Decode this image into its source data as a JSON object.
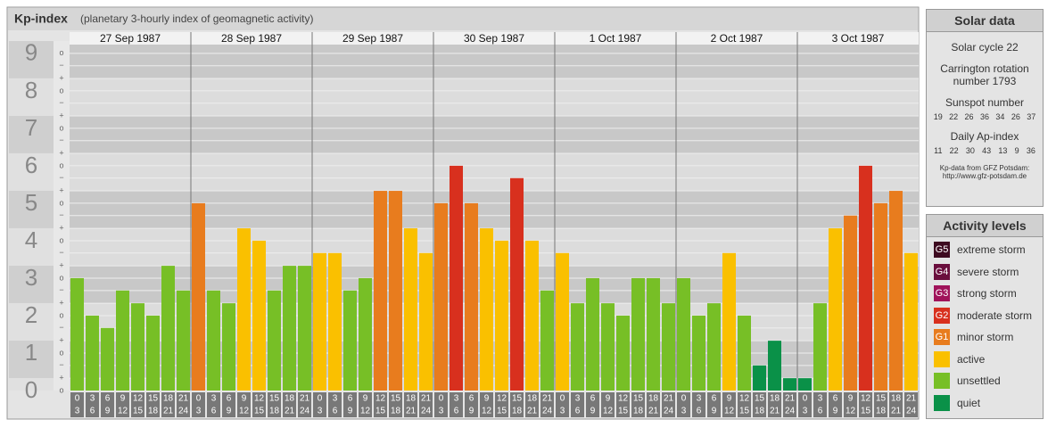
{
  "chart_data": {
    "type": "bar",
    "title": "Kp-index",
    "subtitle": "(planetary 3-hourly index of geomagnetic activity)",
    "ylim": [
      0,
      9.33
    ],
    "major_ticks": [
      0,
      1,
      2,
      3,
      4,
      5,
      6,
      7,
      8,
      9
    ],
    "yticks": [
      {
        "value": 0,
        "label": "o"
      },
      {
        "value": 0.33,
        "label": "+"
      },
      {
        "value": 0.67,
        "label": "−"
      },
      {
        "value": 1,
        "label": "o"
      },
      {
        "value": 1.33,
        "label": "+"
      },
      {
        "value": 1.67,
        "label": "−"
      },
      {
        "value": 2,
        "label": "o"
      },
      {
        "value": 2.33,
        "label": "+"
      },
      {
        "value": 2.67,
        "label": "−"
      },
      {
        "value": 3,
        "label": "o"
      },
      {
        "value": 3.33,
        "label": "+"
      },
      {
        "value": 3.67,
        "label": "−"
      },
      {
        "value": 4,
        "label": "o"
      },
      {
        "value": 4.33,
        "label": "+"
      },
      {
        "value": 4.67,
        "label": "−"
      },
      {
        "value": 5,
        "label": "o"
      },
      {
        "value": 5.33,
        "label": "+"
      },
      {
        "value": 5.67,
        "label": "−"
      },
      {
        "value": 6,
        "label": "o"
      },
      {
        "value": 6.33,
        "label": "+"
      },
      {
        "value": 6.67,
        "label": "−"
      },
      {
        "value": 7,
        "label": "o"
      },
      {
        "value": 7.33,
        "label": "+"
      },
      {
        "value": 7.67,
        "label": "−"
      },
      {
        "value": 8,
        "label": "o"
      },
      {
        "value": 8.33,
        "label": "+"
      },
      {
        "value": 8.67,
        "label": "−"
      },
      {
        "value": 9,
        "label": "o"
      }
    ],
    "grid": true,
    "hour_labels": [
      [
        "0",
        "3"
      ],
      [
        "3",
        "6"
      ],
      [
        "6",
        "9"
      ],
      [
        "9",
        "12"
      ],
      [
        "12",
        "15"
      ],
      [
        "15",
        "18"
      ],
      [
        "18",
        "21"
      ],
      [
        "21",
        "24"
      ]
    ],
    "days": [
      {
        "date": "27 Sep 1987",
        "values": [
          3,
          2,
          1.67,
          2.67,
          2.33,
          2,
          3.33,
          2.67
        ],
        "colors": [
          "#77bf26",
          "#77bf26",
          "#77bf26",
          "#77bf26",
          "#77bf26",
          "#77bf26",
          "#77bf26",
          "#77bf26"
        ]
      },
      {
        "date": "28 Sep 1987",
        "values": [
          5,
          2.67,
          2.33,
          4.33,
          4,
          2.67,
          3.33,
          3.33
        ],
        "colors": [
          "#e87c1e",
          "#77bf26",
          "#77bf26",
          "#fac000",
          "#fac000",
          "#77bf26",
          "#77bf26",
          "#77bf26"
        ]
      },
      {
        "date": "29 Sep 1987",
        "values": [
          3.67,
          3.67,
          2.67,
          3,
          5.33,
          5.33,
          4.33,
          3.67
        ],
        "colors": [
          "#fac000",
          "#fac000",
          "#77bf26",
          "#77bf26",
          "#e87c1e",
          "#e87c1e",
          "#fac000",
          "#fac000"
        ]
      },
      {
        "date": "30 Sep 1987",
        "values": [
          5,
          6,
          5,
          4.33,
          4,
          5.67,
          4,
          2.67
        ],
        "colors": [
          "#e87c1e",
          "#d8301e",
          "#e87c1e",
          "#fac000",
          "#fac000",
          "#d8301e",
          "#fac000",
          "#77bf26"
        ]
      },
      {
        "date": "1 Oct 1987",
        "values": [
          3.67,
          2.33,
          3,
          2.33,
          2,
          3,
          3,
          2.33
        ],
        "colors": [
          "#fac000",
          "#77bf26",
          "#77bf26",
          "#77bf26",
          "#77bf26",
          "#77bf26",
          "#77bf26",
          "#77bf26"
        ]
      },
      {
        "date": "2 Oct 1987",
        "values": [
          3,
          2,
          2.33,
          3.67,
          2,
          0.67,
          1.33,
          0.33
        ],
        "colors": [
          "#77bf26",
          "#77bf26",
          "#77bf26",
          "#fac000",
          "#77bf26",
          "#0a9148",
          "#0a9148",
          "#0a9148"
        ]
      },
      {
        "date": "3 Oct 1987",
        "values": [
          0.33,
          2.33,
          4.33,
          4.67,
          6,
          5,
          5.33,
          3.67
        ],
        "colors": [
          "#0a9148",
          "#77bf26",
          "#fac000",
          "#e87c1e",
          "#d8301e",
          "#e87c1e",
          "#e87c1e",
          "#fac000"
        ]
      }
    ]
  },
  "solar_data": {
    "title": "Solar data",
    "solar_cycle": "Solar cycle 22",
    "carrington": "Carrington rotation number 1793",
    "sunspot_title": "Sunspot number",
    "sunspot": [
      19,
      22,
      26,
      36,
      34,
      26,
      37
    ],
    "ap_title": "Daily Ap-index",
    "ap": [
      11,
      22,
      30,
      43,
      13,
      9,
      36
    ],
    "source": "Kp-data from GFZ Potsdam:",
    "url": "http://www.gfz-potsdam.de"
  },
  "activity_levels": {
    "title": "Activity levels",
    "levels": [
      {
        "code": "G5",
        "name": "extreme storm",
        "color": "#3d0a1f"
      },
      {
        "code": "G4",
        "name": "severe storm",
        "color": "#6a0e3d"
      },
      {
        "code": "G3",
        "name": "strong storm",
        "color": "#a0135a"
      },
      {
        "code": "G2",
        "name": "moderate storm",
        "color": "#d8301e"
      },
      {
        "code": "G1",
        "name": "minor storm",
        "color": "#e87c1e"
      },
      {
        "name": "active",
        "color": "#fac000"
      },
      {
        "name": "unsettled",
        "color": "#77bf26"
      },
      {
        "name": "quiet",
        "color": "#0a9148"
      }
    ]
  }
}
